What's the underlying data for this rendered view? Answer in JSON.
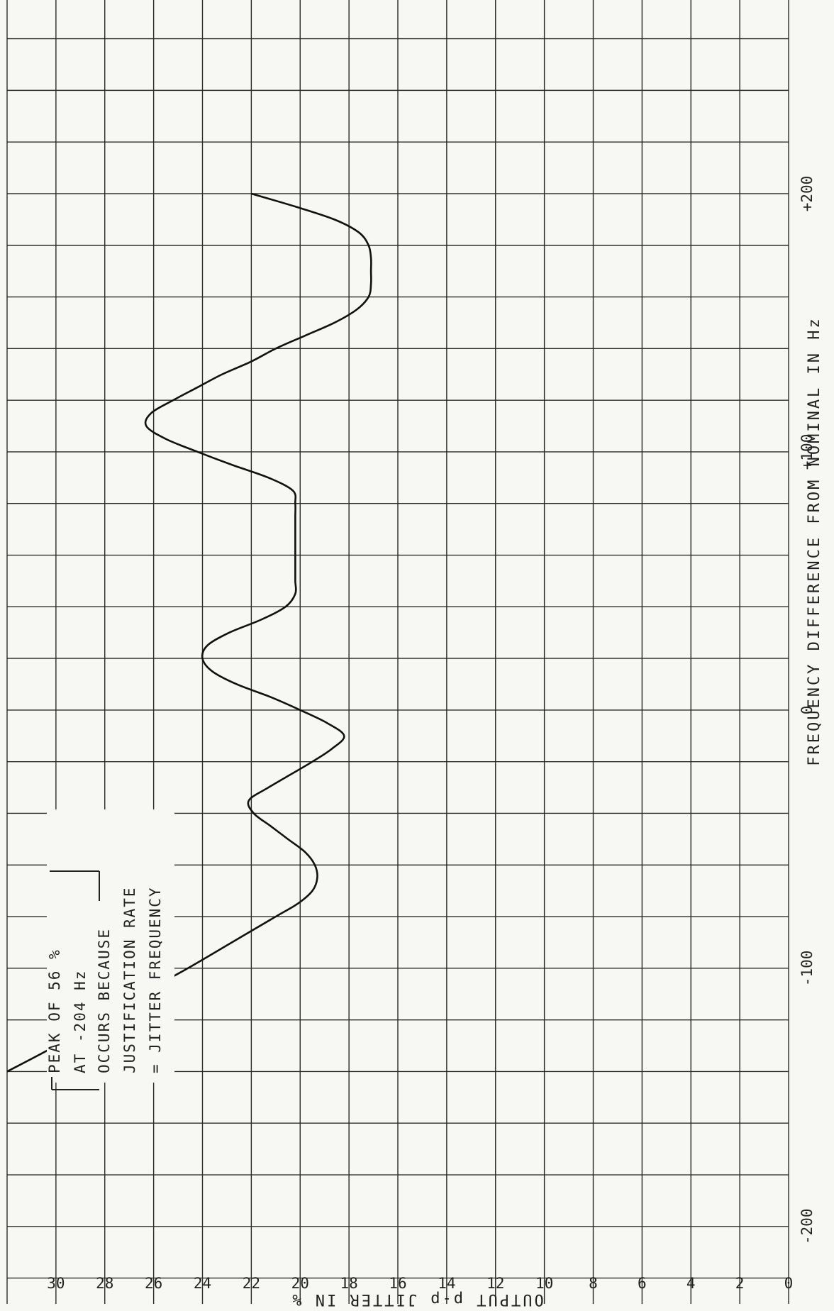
{
  "chart_data": {
    "type": "line",
    "title": "",
    "xlabel": "FREQUENCY DIFFERENCE FROM NOMINAL IN Hz",
    "ylabel": "OUTPUT p-p JITTER IN %",
    "xlim": [
      -230,
      275
    ],
    "ylim": [
      0,
      32
    ],
    "x_ticks": [
      -200,
      -100,
      0,
      100,
      200
    ],
    "x_tick_labels": [
      "-200",
      "-100",
      "0",
      "+100",
      "+200"
    ],
    "y_ticks": [
      2,
      4,
      6,
      8,
      10,
      12,
      14,
      16,
      18,
      20,
      22,
      24,
      26,
      28,
      30
    ],
    "y_tick_labels": [
      "2",
      "4",
      "6",
      "8",
      "10",
      "12",
      "14",
      "16",
      "18",
      "20",
      "22",
      "24",
      "26",
      "28",
      "30"
    ],
    "y_origin_label": "0",
    "grid": true,
    "series": [
      {
        "name": "",
        "x": [
          -140,
          -130,
          -120,
          -110,
          -100,
          -90,
          -80,
          -75,
          -70,
          -65,
          -60,
          -55,
          -50,
          -45,
          -40,
          -35,
          -30,
          -25,
          -20,
          -15,
          -10,
          -5,
          0,
          5,
          10,
          15,
          20,
          25,
          30,
          35,
          40,
          45,
          50,
          55,
          60,
          65,
          70,
          75,
          80,
          85,
          90,
          95,
          100,
          105,
          110,
          115,
          120,
          125,
          130,
          135,
          140,
          145,
          150,
          155,
          160,
          165,
          170,
          175,
          180,
          185,
          190,
          195,
          200
        ],
        "y": [
          32,
          30,
          28.3,
          26.5,
          24.6,
          22.8,
          21,
          20.1,
          19.5,
          19.3,
          19.4,
          19.8,
          20.5,
          21.2,
          21.9,
          22.1,
          21.3,
          20.4,
          19.5,
          18.7,
          18.2,
          18.9,
          20,
          21.2,
          22.6,
          23.6,
          24,
          23.8,
          22.9,
          21.6,
          20.6,
          20.2,
          20.2,
          20.2,
          20.2,
          20.2,
          20.2,
          20.2,
          20.2,
          20.3,
          21.3,
          22.8,
          24.2,
          25.5,
          26.3,
          26.1,
          25.2,
          24.2,
          23.2,
          22,
          21,
          19.8,
          18.6,
          17.7,
          17.2,
          17.1,
          17.1,
          17.1,
          17.2,
          17.6,
          18.6,
          20.2,
          22
        ]
      }
    ],
    "annotations": [
      "PEAK OF 56 %",
      "AT -204 Hz",
      "OCCURS BECAUSE",
      "JUSTIFICATION RATE",
      "= JITTER FREQUENCY"
    ]
  }
}
